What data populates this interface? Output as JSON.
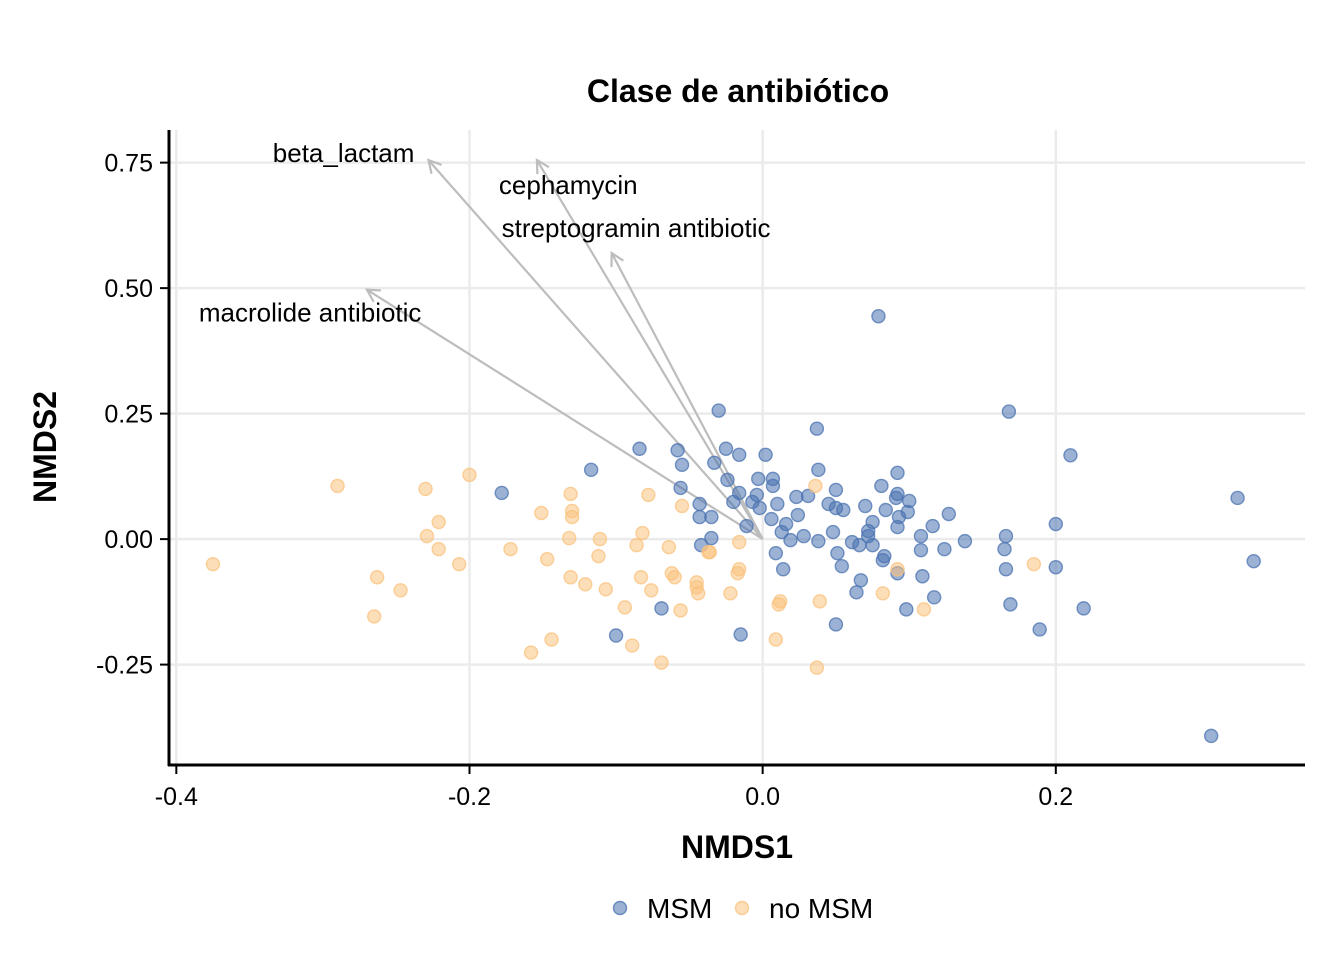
{
  "chart_data": {
    "type": "scatter",
    "title": "Clase de antibiótico",
    "xlabel": "NMDS1",
    "ylabel": "NMDS2",
    "xlim": [
      -0.405,
      0.37
    ],
    "ylim": [
      -0.45,
      0.815
    ],
    "x_ticks": [
      -0.4,
      -0.2,
      0.0,
      0.2
    ],
    "x_tick_labels": [
      "-0.4",
      "-0.2",
      "0.0",
      "0.2"
    ],
    "y_ticks": [
      -0.25,
      0.0,
      0.25,
      0.5,
      0.75
    ],
    "y_tick_labels": [
      "-0.25",
      "0.00",
      "0.25",
      "0.50",
      "0.75"
    ],
    "grid": true,
    "legend_position": "bottom",
    "series": [
      {
        "name": "MSM",
        "color": "#4a72b0",
        "points": [
          [
            0.079,
            0.444
          ],
          [
            -0.03,
            0.256
          ],
          [
            0.168,
            0.254
          ],
          [
            0.037,
            0.22
          ],
          [
            0.21,
            0.167
          ],
          [
            -0.084,
            0.18
          ],
          [
            -0.058,
            0.177
          ],
          [
            -0.025,
            0.18
          ],
          [
            0.002,
            0.168
          ],
          [
            -0.016,
            0.168
          ],
          [
            -0.055,
            0.148
          ],
          [
            -0.033,
            0.152
          ],
          [
            -0.117,
            0.138
          ],
          [
            0.038,
            0.138
          ],
          [
            0.092,
            0.132
          ],
          [
            -0.003,
            0.12
          ],
          [
            0.007,
            0.12
          ],
          [
            -0.024,
            0.118
          ],
          [
            0.081,
            0.106
          ],
          [
            0.007,
            0.106
          ],
          [
            -0.056,
            0.102
          ],
          [
            -0.178,
            0.092
          ],
          [
            0.05,
            0.098
          ],
          [
            -0.016,
            0.092
          ],
          [
            -0.004,
            0.088
          ],
          [
            0.092,
            0.09
          ],
          [
            0.023,
            0.084
          ],
          [
            0.031,
            0.086
          ],
          [
            0.091,
            0.082
          ],
          [
            0.324,
            0.082
          ],
          [
            0.1,
            0.076
          ],
          [
            -0.02,
            0.074
          ],
          [
            -0.007,
            0.074
          ],
          [
            0.01,
            0.07
          ],
          [
            -0.043,
            0.07
          ],
          [
            0.045,
            0.07
          ],
          [
            0.07,
            0.066
          ],
          [
            0.05,
            0.062
          ],
          [
            0.055,
            0.058
          ],
          [
            0.084,
            0.058
          ],
          [
            -0.002,
            0.062
          ],
          [
            0.127,
            0.05
          ],
          [
            0.024,
            0.048
          ],
          [
            0.093,
            0.044
          ],
          [
            0.099,
            0.054
          ],
          [
            -0.043,
            0.044
          ],
          [
            -0.035,
            0.044
          ],
          [
            0.006,
            0.04
          ],
          [
            0.016,
            0.03
          ],
          [
            0.075,
            0.034
          ],
          [
            0.2,
            0.03
          ],
          [
            0.116,
            0.026
          ],
          [
            0.092,
            0.024
          ],
          [
            -0.011,
            0.026
          ],
          [
            0.013,
            0.014
          ],
          [
            0.048,
            0.014
          ],
          [
            0.072,
            0.016
          ],
          [
            0.108,
            0.006
          ],
          [
            0.166,
            0.006
          ],
          [
            0.072,
            0.006
          ],
          [
            0.028,
            0.006
          ],
          [
            0.019,
            -0.002
          ],
          [
            0.038,
            -0.004
          ],
          [
            0.061,
            -0.006
          ],
          [
            0.138,
            -0.004
          ],
          [
            -0.035,
            0.002
          ],
          [
            0.066,
            -0.012
          ],
          [
            0.075,
            -0.012
          ],
          [
            -0.042,
            -0.012
          ],
          [
            0.165,
            -0.02
          ],
          [
            0.124,
            -0.02
          ],
          [
            0.108,
            -0.022
          ],
          [
            0.009,
            -0.028
          ],
          [
            0.051,
            -0.028
          ],
          [
            0.083,
            -0.034
          ],
          [
            0.335,
            -0.044
          ],
          [
            0.082,
            -0.042
          ],
          [
            0.2,
            -0.056
          ],
          [
            0.054,
            -0.054
          ],
          [
            0.166,
            -0.06
          ],
          [
            0.014,
            -0.06
          ],
          [
            0.092,
            -0.068
          ],
          [
            0.109,
            -0.074
          ],
          [
            0.067,
            -0.082
          ],
          [
            0.064,
            -0.106
          ],
          [
            0.117,
            -0.116
          ],
          [
            0.169,
            -0.13
          ],
          [
            -0.069,
            -0.138
          ],
          [
            0.098,
            -0.14
          ],
          [
            0.219,
            -0.138
          ],
          [
            0.05,
            -0.17
          ],
          [
            0.189,
            -0.18
          ],
          [
            -0.1,
            -0.192
          ],
          [
            -0.015,
            -0.19
          ],
          [
            0.306,
            -0.392
          ]
        ]
      },
      {
        "name": "no MSM",
        "color": "#f9c27e",
        "points": [
          [
            -0.2,
            0.128
          ],
          [
            -0.29,
            0.106
          ],
          [
            -0.23,
            0.1
          ],
          [
            0.036,
            0.106
          ],
          [
            -0.131,
            0.09
          ],
          [
            -0.078,
            0.088
          ],
          [
            -0.055,
            0.066
          ],
          [
            -0.151,
            0.052
          ],
          [
            -0.13,
            0.056
          ],
          [
            -0.13,
            0.044
          ],
          [
            -0.221,
            0.034
          ],
          [
            -0.082,
            0.012
          ],
          [
            -0.229,
            0.006
          ],
          [
            -0.132,
            0.002
          ],
          [
            -0.111,
            0.0
          ],
          [
            -0.016,
            -0.006
          ],
          [
            -0.086,
            -0.012
          ],
          [
            -0.064,
            -0.016
          ],
          [
            -0.221,
            -0.02
          ],
          [
            -0.172,
            -0.02
          ],
          [
            -0.112,
            -0.034
          ],
          [
            -0.147,
            -0.04
          ],
          [
            -0.207,
            -0.05
          ],
          [
            -0.375,
            -0.05
          ],
          [
            -0.016,
            -0.06
          ],
          [
            -0.017,
            -0.068
          ],
          [
            -0.062,
            -0.068
          ],
          [
            0.092,
            -0.06
          ],
          [
            0.185,
            -0.05
          ],
          [
            -0.263,
            -0.076
          ],
          [
            -0.131,
            -0.076
          ],
          [
            -0.083,
            -0.076
          ],
          [
            -0.06,
            -0.076
          ],
          [
            -0.045,
            -0.086
          ],
          [
            -0.121,
            -0.09
          ],
          [
            -0.045,
            -0.096
          ],
          [
            -0.107,
            -0.1
          ],
          [
            -0.076,
            -0.102
          ],
          [
            -0.247,
            -0.102
          ],
          [
            -0.022,
            -0.108
          ],
          [
            -0.044,
            -0.108
          ],
          [
            0.082,
            -0.108
          ],
          [
            0.012,
            -0.124
          ],
          [
            0.011,
            -0.13
          ],
          [
            0.039,
            -0.124
          ],
          [
            -0.094,
            -0.136
          ],
          [
            -0.056,
            -0.142
          ],
          [
            0.11,
            -0.14
          ],
          [
            -0.265,
            -0.154
          ],
          [
            0.009,
            -0.2
          ],
          [
            -0.144,
            -0.2
          ],
          [
            -0.089,
            -0.212
          ],
          [
            -0.158,
            -0.226
          ],
          [
            -0.069,
            -0.246
          ],
          [
            0.037,
            -0.256
          ],
          [
            -0.037,
            -0.026
          ],
          [
            -0.036,
            -0.026
          ]
        ]
      }
    ],
    "arrows": [
      {
        "label": "beta_lactam",
        "x": -0.228,
        "y": 0.755
      },
      {
        "label": "cephamycin",
        "x": -0.154,
        "y": 0.755
      },
      {
        "label": "streptogramin antibiotic",
        "x": -0.103,
        "y": 0.57
      },
      {
        "label": "macrolide antibiotic",
        "x": -0.27,
        "y": 0.497
      }
    ],
    "legend": [
      {
        "label": "MSM",
        "color": "#4a72b0"
      },
      {
        "label": "no MSM",
        "color": "#f9c27e"
      }
    ]
  }
}
